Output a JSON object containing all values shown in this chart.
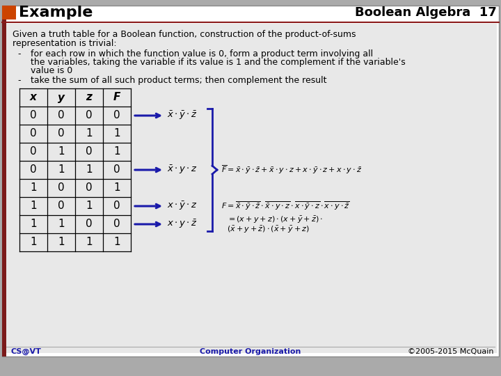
{
  "title_left": "Example",
  "title_right": "Boolean Algebra  17",
  "bg_color": "#c0c0c0",
  "header_bg": "#ffffff",
  "orange_box": "#CC4400",
  "dark_red_line": "#8B1A1A",
  "content_bg": "#e8e8e8",
  "blue_color": "#1a1aaa",
  "table_headers": [
    "x",
    "y",
    "z",
    "F"
  ],
  "table_data": [
    [
      0,
      0,
      0,
      0
    ],
    [
      0,
      0,
      1,
      1
    ],
    [
      0,
      1,
      0,
      1
    ],
    [
      0,
      1,
      1,
      0
    ],
    [
      1,
      0,
      0,
      1
    ],
    [
      1,
      0,
      1,
      0
    ],
    [
      1,
      1,
      0,
      0
    ],
    [
      1,
      1,
      1,
      1
    ]
  ],
  "footer_left": "CS@VT",
  "footer_center": "Computer Organization",
  "footer_right": "©2005-2015 McQuain",
  "para1": "Given a truth table for a Boolean function, construction of the product-of-sums",
  "para2": "representation is trivial:",
  "bullet1a": "for each row in which the function value is 0, form a product term involving all",
  "bullet1b": "the variables, taking the variable if its value is 1 and the complement if the variable's",
  "bullet1c": "value is 0",
  "bullet2": "take the sum of all such product terms; then complement the result"
}
